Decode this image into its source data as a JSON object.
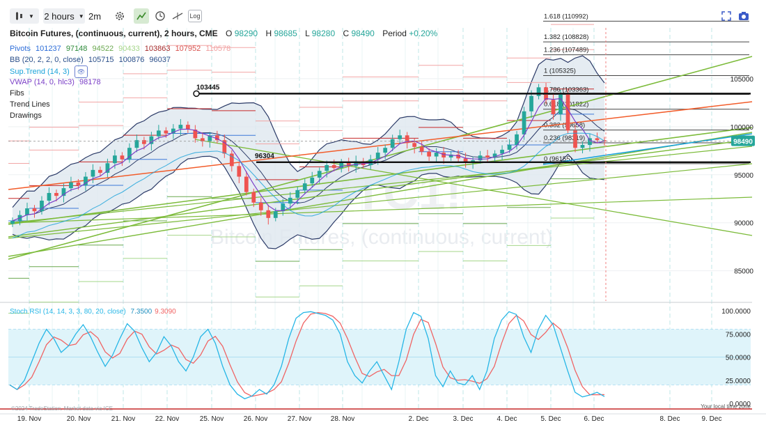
{
  "toolbar": {
    "interval": "2 hours",
    "interval_alt": "2m",
    "log_label": "Log"
  },
  "header": {
    "title": "Bitcoin Futures, (continuous, current), 2 hours, CME",
    "o_label": "O",
    "o": "98290",
    "h_label": "H",
    "h": "98685",
    "l_label": "L",
    "l": "98280",
    "c_label": "C",
    "c": "98490",
    "period_label": "Period",
    "period_change": "+0.20%"
  },
  "indicators": {
    "pivots": {
      "label": "Pivots",
      "values": [
        "101237",
        "97148",
        "94522",
        "90433",
        "103863",
        "107952",
        "110578"
      ]
    },
    "bb": {
      "label": "BB (20, 2, 2, 0, close)",
      "values": [
        "105715",
        "100876",
        "96037"
      ]
    },
    "suptrend": {
      "label": "Sup.Trend (14, 3)"
    },
    "vwap": {
      "label": "VWAP (14, 0, hlc3)",
      "value": "98178"
    },
    "fibs": "Fibs",
    "trendlines": "Trend Lines",
    "drawings": "Drawings"
  },
  "watermark": {
    "symbol": "BTC1!",
    "name": "Bitcoin Futures, (continuous, current)"
  },
  "colors": {
    "candle_up": "#26a69a",
    "candle_down": "#ef5350",
    "bb": "#2b3a67",
    "bb_fill": "#dfe7ef",
    "trend_green": "#7cbb3a",
    "trend_orange": "#f25c2a",
    "pivot_red": "#c62828",
    "pivot_green": "#6aa84f",
    "vwap": "#7b3fc7",
    "suptrend": "#1aa3d9",
    "stoch_k": "#26b6e6",
    "stoch_d": "#f06464",
    "stoch_band": "#dff4fa"
  },
  "chart_data": [
    {
      "type": "candlestick",
      "title": "Bitcoin Futures, (continuous, current), 2 hours, CME",
      "x_ticks": [
        "19. Nov",
        "20. Nov",
        "21. Nov",
        "22. Nov",
        "25. Nov",
        "26. Nov",
        "27. Nov",
        "28. Nov",
        "2. Dec",
        "3. Dec",
        "4. Dec",
        "5. Dec",
        "6. Dec",
        "8. Dec",
        "9. Dec"
      ],
      "y_ticks": [
        85000,
        90000,
        95000,
        100000,
        105000
      ],
      "ylim": [
        82000,
        110000
      ],
      "last_price": 98490,
      "last_price_label": "98490",
      "annotations": [
        {
          "text": "103445",
          "value": 103445
        },
        {
          "text": "96304",
          "value": 96304
        }
      ],
      "fib_levels": [
        {
          "ratio": "1.618",
          "value": 110992
        },
        {
          "ratio": "1.382",
          "value": 108828
        },
        {
          "ratio": "1.236",
          "value": 107489
        },
        {
          "ratio": "1",
          "value": 105325
        },
        {
          "ratio": "0.786",
          "value": 103363
        },
        {
          "ratio": "0.618",
          "value": 101822
        },
        {
          "ratio": "0.382",
          "value": 99658
        },
        {
          "ratio": "0.236",
          "value": 98319
        },
        {
          "ratio": "0",
          "value": 96155
        }
      ],
      "series": [
        {
          "name": "Bitcoin Futures",
          "close": [
            90200,
            90800,
            91500,
            91200,
            92300,
            93100,
            92800,
            93600,
            94200,
            93900,
            94800,
            95500,
            95200,
            96200,
            97000,
            96600,
            97800,
            98600,
            98200,
            99000,
            99600,
            99300,
            99800,
            100200,
            99700,
            98800,
            98500,
            99100,
            98600,
            97200,
            95900,
            94800,
            93200,
            92100,
            91300,
            90500,
            91200,
            92000,
            92600,
            93400,
            94100,
            94700,
            95400,
            96000,
            95700,
            96300,
            95900,
            96400,
            96000,
            96600,
            97300,
            97800,
            98700,
            99100,
            98300,
            97900,
            97400,
            96900,
            97300,
            96800,
            97100,
            96700,
            96300,
            96500,
            97000,
            96800,
            97200,
            97600,
            98100,
            99200,
            101600,
            103200,
            104100,
            102800,
            101300,
            103500,
            99600,
            97800,
            98100,
            98800,
            98600,
            98490
          ]
        },
        {
          "name": "Stoch RSI",
          "type": "line",
          "k_value": "7.3500",
          "d_value": "9.3090",
          "y_ticks": [
            0,
            25,
            50,
            75,
            100
          ],
          "bands": [
            20,
            80
          ],
          "values": [
            20,
            15,
            25,
            45,
            65,
            80,
            70,
            55,
            62,
            75,
            85,
            72,
            55,
            40,
            52,
            70,
            86,
            78,
            60,
            45,
            55,
            72,
            62,
            45,
            35,
            50,
            72,
            80,
            65,
            40,
            20,
            10,
            5,
            8,
            15,
            10,
            20,
            40,
            70,
            92,
            98,
            99,
            97,
            95,
            90,
            75,
            45,
            30,
            22,
            35,
            45,
            30,
            15,
            45,
            80,
            98,
            94,
            70,
            30,
            18,
            35,
            22,
            20,
            30,
            15,
            35,
            70,
            90,
            99,
            96,
            72,
            55,
            80,
            95,
            85,
            60,
            35,
            12,
            7,
            9,
            12,
            7.35
          ]
        }
      ]
    }
  ],
  "footer": {
    "copyright": "©2024 TradeStation. Market data via ICE",
    "timezone": "Your local time zone"
  }
}
